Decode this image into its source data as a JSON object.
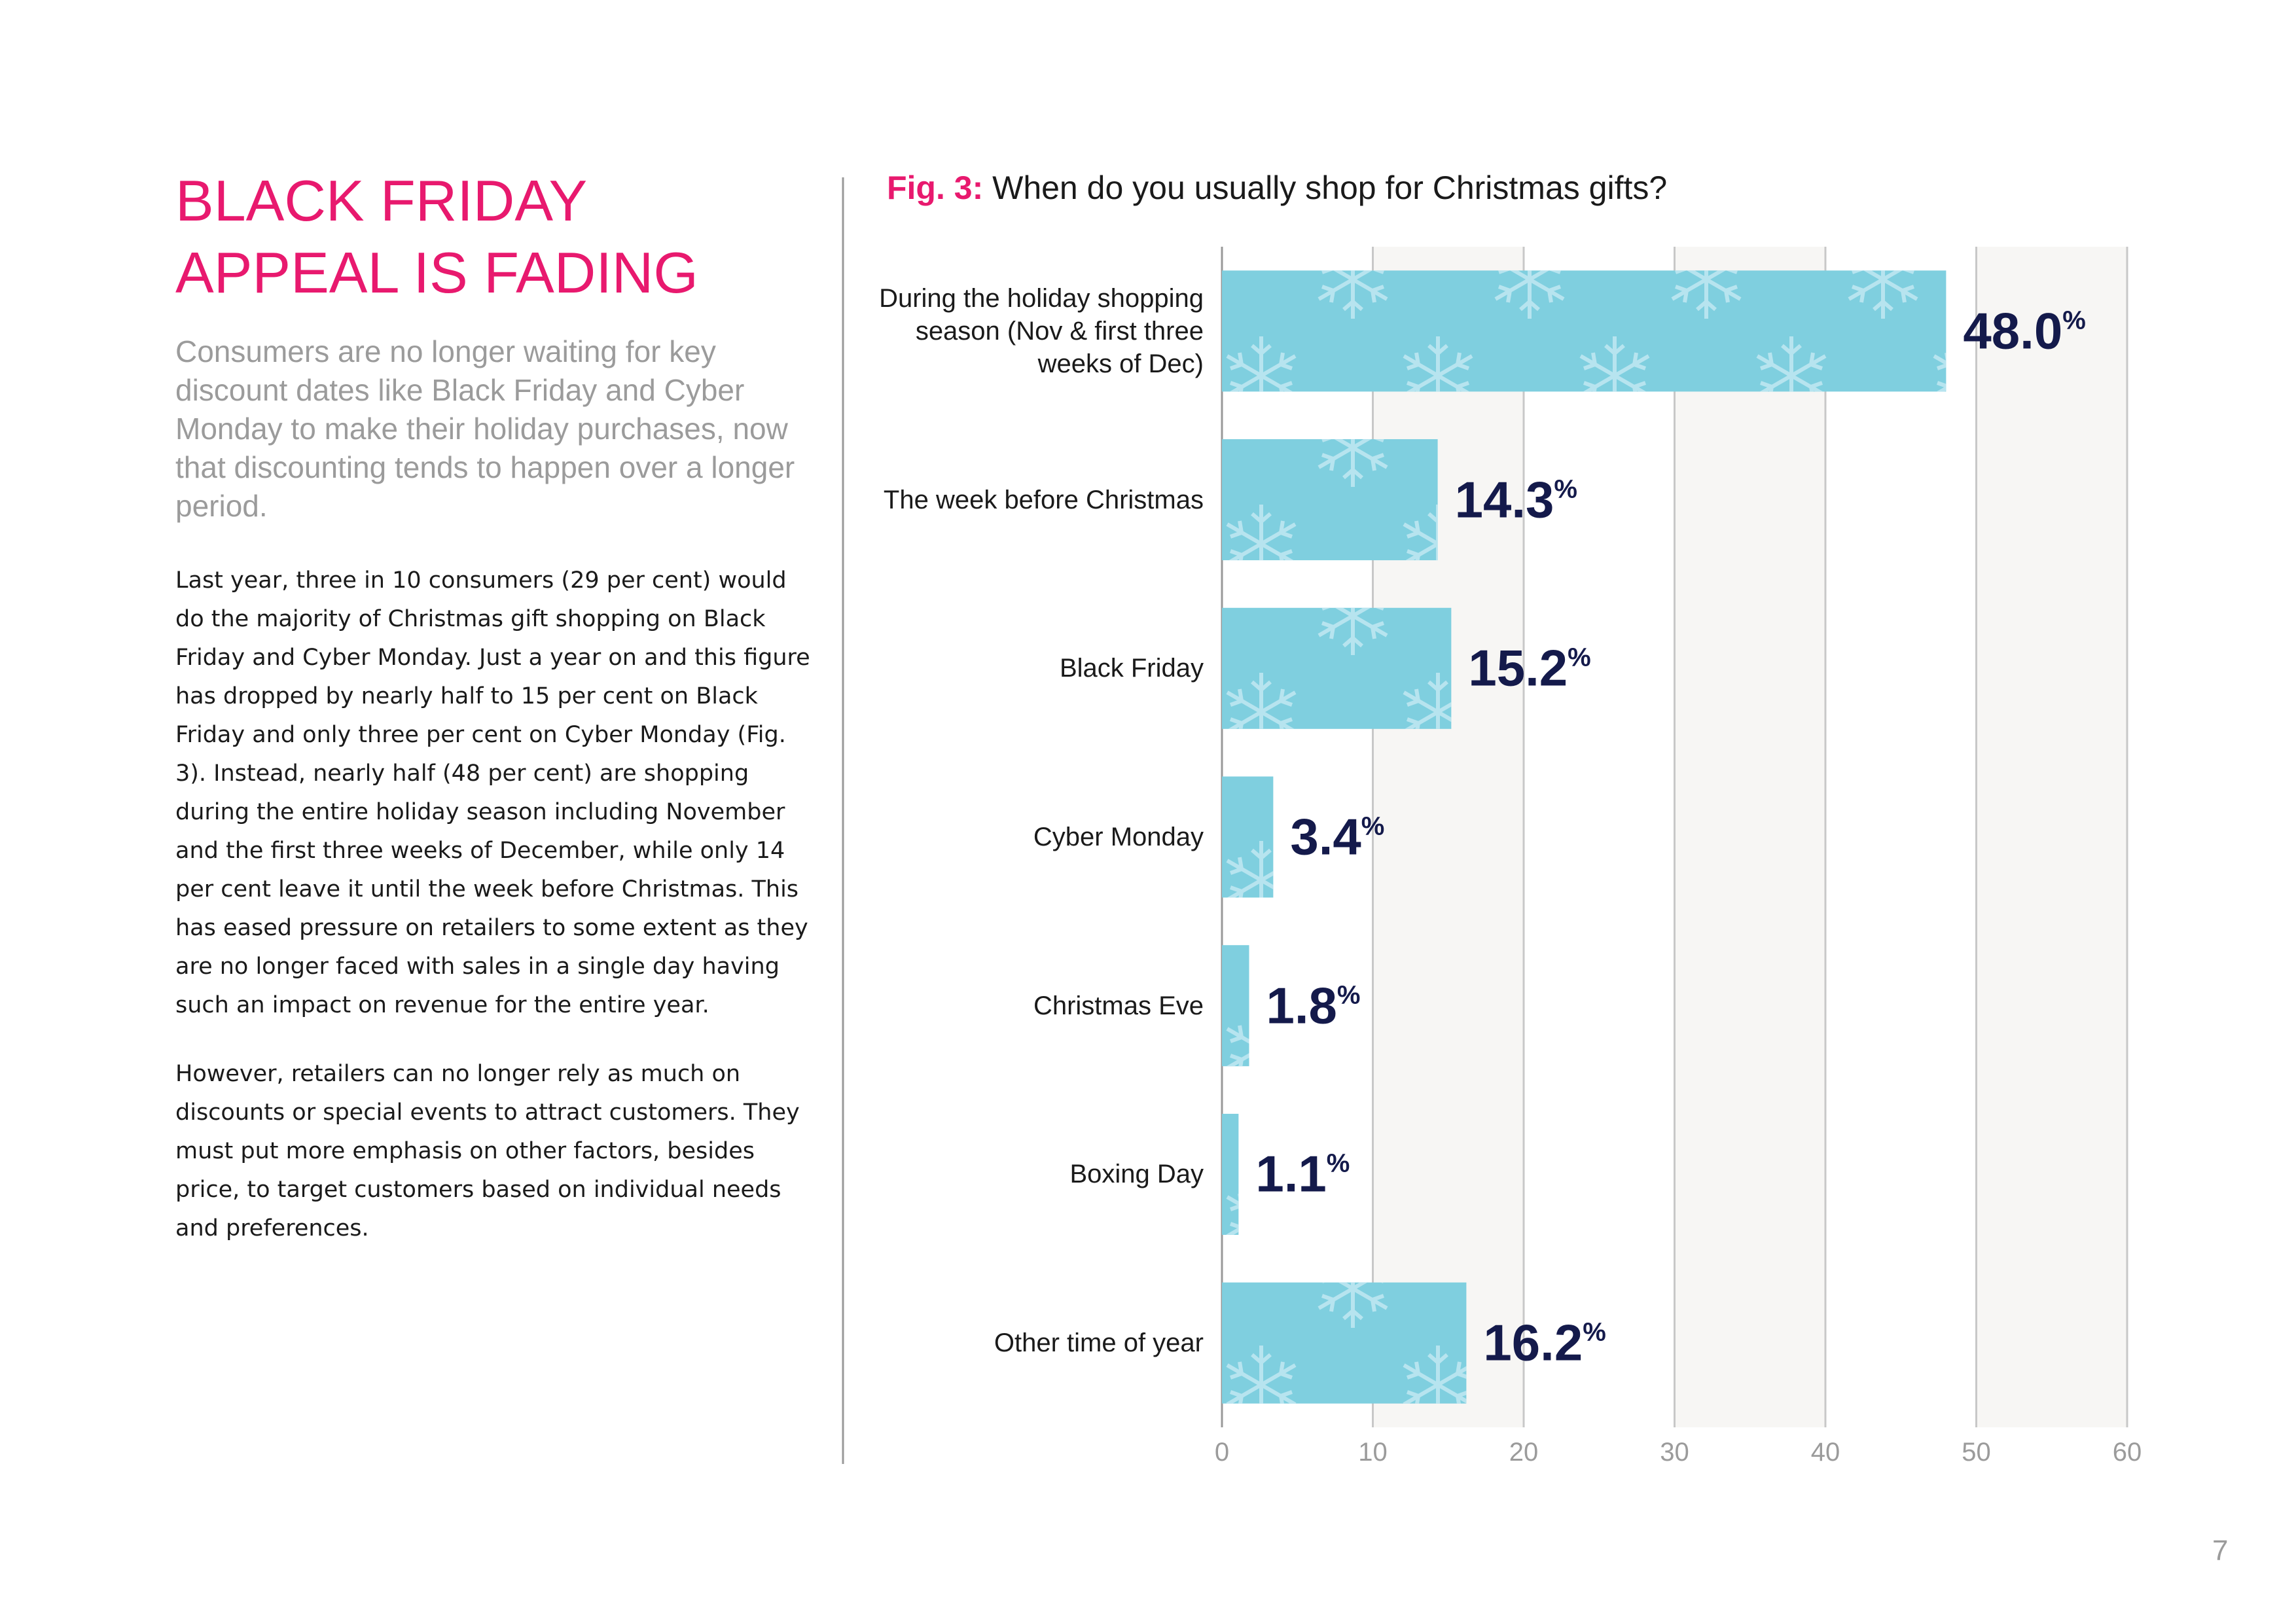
{
  "page": {
    "title_lines": [
      "BLACK FRIDAY",
      "APPEAL IS FADING"
    ],
    "subtitle": "Consumers are no longer waiting for key discount dates like Black Friday and Cyber Monday to make their holiday purchases, now that discounting tends to happen over a longer period.",
    "paragraphs": [
      "Last year, three in 10 consumers (29 per cent) would do the majority of Christmas gift shopping on Black Friday and Cyber Monday. Just a year on and this figure has dropped by nearly half to 15 per cent on Black Friday and only three per cent on Cyber Monday (Fig. 3). Instead, nearly half (48 per cent) are shopping during the entire holiday season including November and the first three weeks of December, while only 14 per cent leave it until the week before Christmas. This has eased pressure on retailers to some extent as they are no longer faced with sales in a single day having such an impact on revenue for the entire year.",
      "However, retailers can no longer rely as much on discounts or special events to attract customers. They must put more emphasis on other factors, besides price, to target customers based on individual needs and preferences."
    ],
    "page_number": "7"
  },
  "chart_data": {
    "type": "hbar",
    "figure_label": "Fig. 3:",
    "title": "When do you usually shop for Christmas gifts?",
    "categories": [
      "During the holiday shopping season (Nov & first three weeks of Dec)",
      "The week before Christmas",
      "Black Friday",
      "Cyber Monday",
      "Christmas Eve",
      "Boxing Day",
      "Other time of year"
    ],
    "values": [
      48.0,
      14.3,
      15.2,
      3.4,
      1.8,
      1.1,
      16.2
    ],
    "value_labels": [
      "48.0",
      "14.3",
      "15.2",
      "3.4",
      "1.8",
      "1.1",
      "16.2"
    ],
    "value_unit": "%",
    "color": "#7fcfdf",
    "xlim": [
      0,
      60
    ],
    "xticks": [
      0,
      10,
      20,
      30,
      40,
      50,
      60
    ],
    "grid": true
  }
}
